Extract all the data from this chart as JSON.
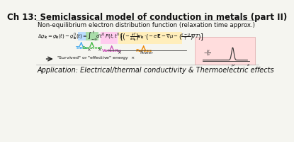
{
  "title": "Ch 13: Semiclassical model of conduction in metals (part II)",
  "title_fontsize": 8.5,
  "bg_color": "#f5f5f0",
  "line_color": "#aaaaaa",
  "subtitle": "Non-equilibrium electron distribution function (relaxation time approx.)",
  "subtitle_fontsize": 6.2,
  "application": "Application: Electrical/thermal conductivity & Thermoelectric effects",
  "application_fontsize": 7.0,
  "color_time": "#44aaee",
  "color_survival": "#44bb44",
  "color_velocity": "#cc55bb",
  "color_forces": "#ee8800",
  "color_highlight_dt": "#bbddff",
  "color_highlight_P": "#aaddaa",
  "color_highlight_vel": "#ffccee",
  "color_highlight_forces": "#ffeebb",
  "graph_bg": "#ffdddd",
  "graph_border": "#ddaaaa"
}
